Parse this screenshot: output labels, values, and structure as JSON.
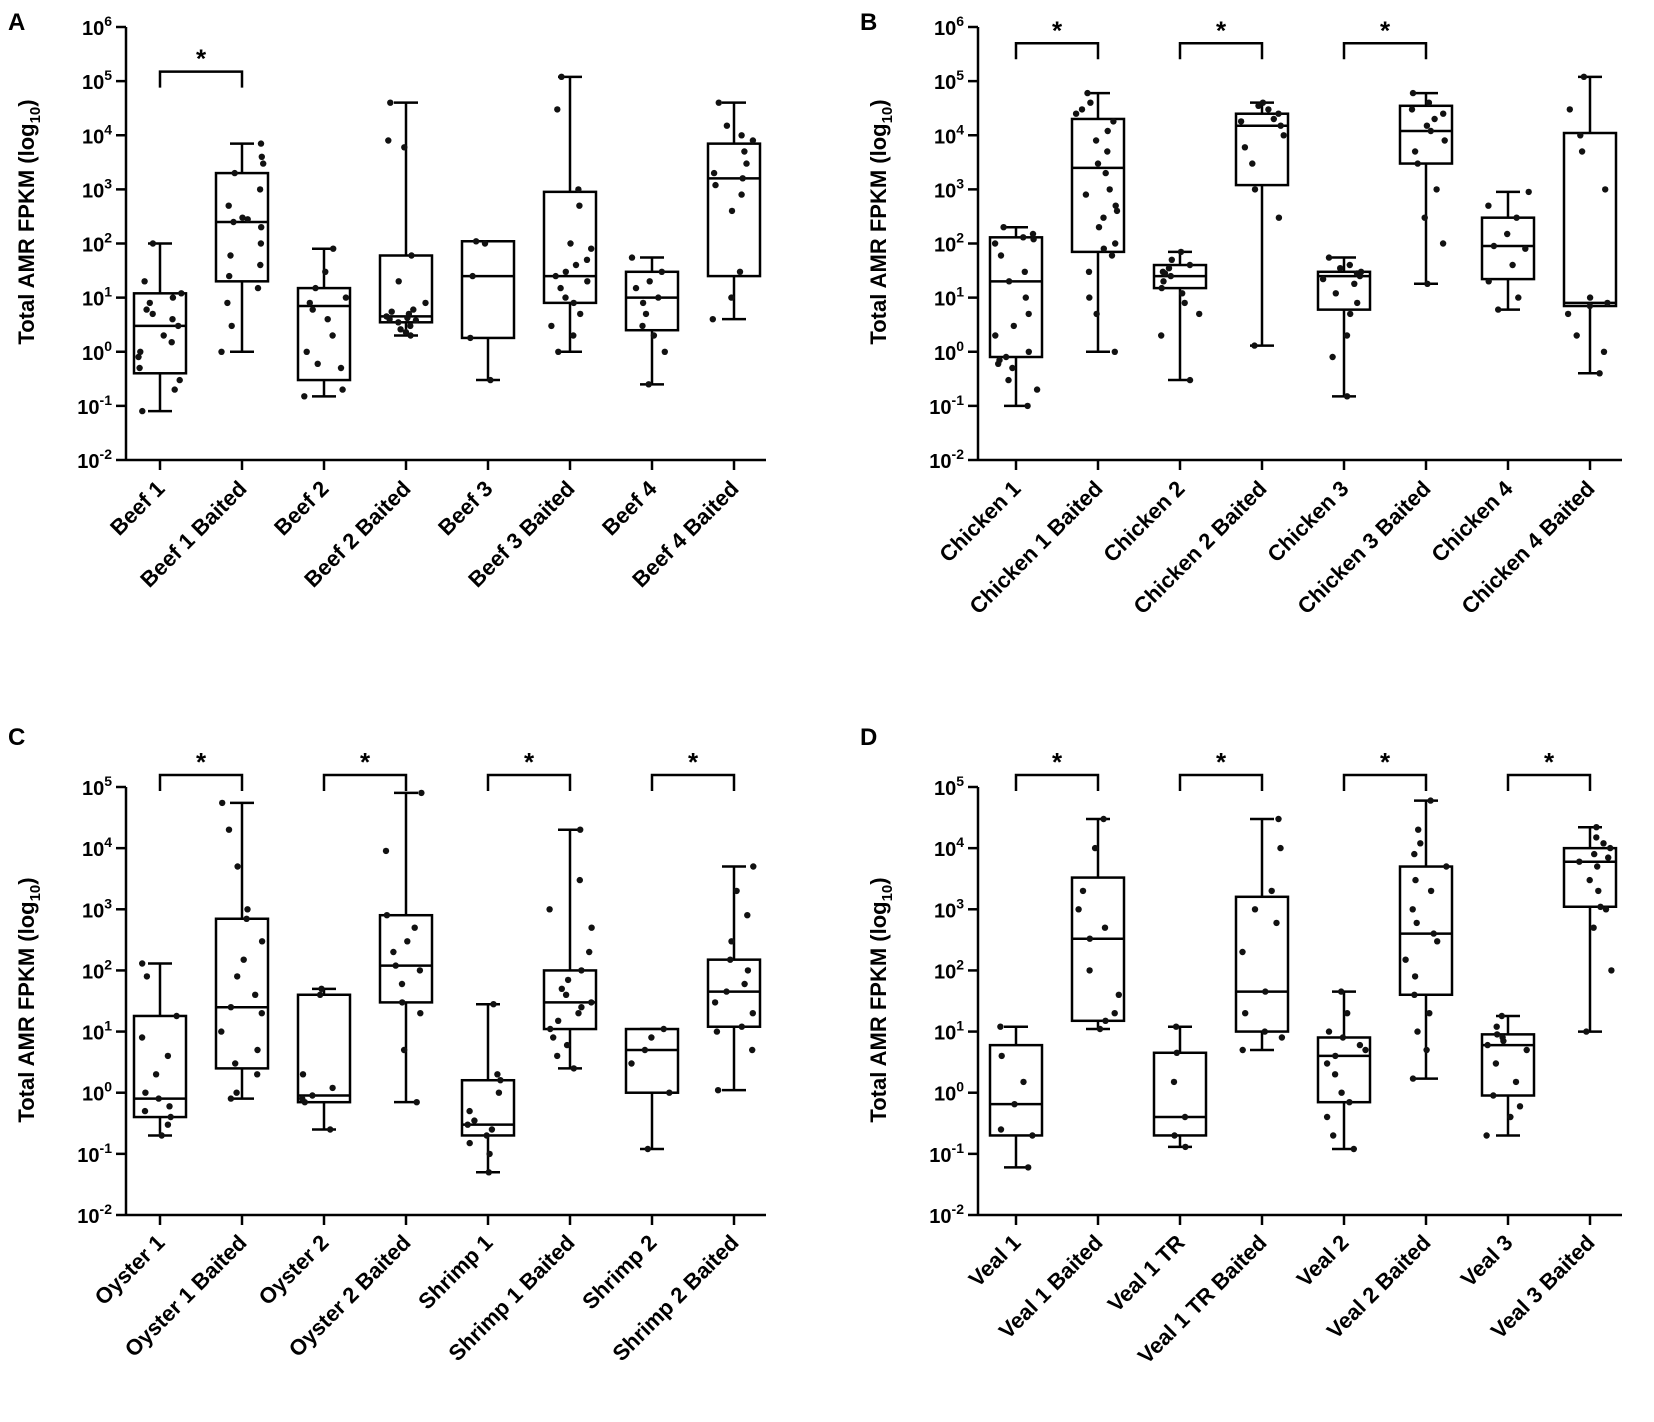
{
  "chart_data": [
    {
      "panel": "A",
      "type": "box",
      "ylabel": "Total AMR FPKM (log10)",
      "yscale": "log",
      "ylim": [
        0.01,
        1000000
      ],
      "yticks": [
        {
          "value": 0.01,
          "base": "10",
          "exp": "-2"
        },
        {
          "value": 0.1,
          "base": "10",
          "exp": "-1"
        },
        {
          "value": 1,
          "base": "10",
          "exp": "0"
        },
        {
          "value": 10,
          "base": "10",
          "exp": "1"
        },
        {
          "value": 100,
          "base": "10",
          "exp": "2"
        },
        {
          "value": 1000,
          "base": "10",
          "exp": "3"
        },
        {
          "value": 10000,
          "base": "10",
          "exp": "4"
        },
        {
          "value": 100000,
          "base": "10",
          "exp": "5"
        },
        {
          "value": 1000000,
          "base": "10",
          "exp": "6"
        }
      ],
      "groups": [
        {
          "label": "Beef 1",
          "min": 0.08,
          "q1": 0.4,
          "median": 3,
          "q3": 12,
          "max": 100,
          "points": [
            0.08,
            0.2,
            0.3,
            0.5,
            0.8,
            1,
            1.5,
            2,
            3,
            4,
            5,
            6,
            8,
            10,
            12,
            20,
            100
          ]
        },
        {
          "label": "Beef 1 Baited",
          "min": 1,
          "q1": 20,
          "median": 250,
          "q3": 2000,
          "max": 7000,
          "points": [
            1,
            3,
            8,
            15,
            25,
            40,
            60,
            100,
            200,
            250,
            280,
            300,
            500,
            1000,
            2000,
            3000,
            4000,
            7000
          ]
        },
        {
          "label": "Beef 2",
          "min": 0.15,
          "q1": 0.3,
          "median": 7,
          "q3": 15,
          "max": 80,
          "points": [
            0.15,
            0.2,
            0.5,
            0.6,
            1,
            2,
            4,
            6,
            8,
            10,
            15,
            30,
            80
          ]
        },
        {
          "label": "Beef 2 Baited",
          "min": 2,
          "q1": 3.5,
          "median": 4.5,
          "q3": 60,
          "max": 40000,
          "points": [
            2,
            2.3,
            2.6,
            3,
            3.5,
            3.8,
            4,
            4.2,
            4.5,
            5,
            5.5,
            6,
            8,
            20,
            60,
            6000,
            8000,
            40000
          ]
        },
        {
          "label": "Beef 3",
          "min": 0.3,
          "q1": 1.8,
          "median": 25,
          "q3": 110,
          "max": 110,
          "points": [
            0.3,
            1.8,
            25,
            100,
            110
          ]
        },
        {
          "label": "Beef 3 Baited",
          "min": 1,
          "q1": 8,
          "median": 25,
          "q3": 900,
          "max": 120000,
          "points": [
            1,
            2,
            3,
            5,
            8,
            10,
            15,
            20,
            25,
            30,
            40,
            50,
            80,
            100,
            500,
            1000,
            30000,
            120000
          ]
        },
        {
          "label": "Beef 4",
          "min": 0.25,
          "q1": 2.5,
          "median": 10,
          "q3": 30,
          "max": 55,
          "points": [
            0.25,
            1,
            2,
            3,
            5,
            8,
            10,
            15,
            20,
            30,
            55
          ]
        },
        {
          "label": "Beef 4 Baited",
          "min": 4,
          "q1": 25,
          "median": 1600,
          "q3": 7000,
          "max": 40000,
          "points": [
            4,
            10,
            30,
            400,
            800,
            1200,
            1600,
            2000,
            3000,
            5000,
            8000,
            10000,
            15000,
            40000
          ]
        }
      ],
      "significance": [
        {
          "pair": [
            0,
            1
          ],
          "y": 150000,
          "label": "*"
        }
      ]
    },
    {
      "panel": "B",
      "type": "box",
      "ylabel": "Total AMR FPKM (log10)",
      "yscale": "log",
      "ylim": [
        0.01,
        1000000
      ],
      "yticks": [
        {
          "value": 0.01,
          "base": "10",
          "exp": "-2"
        },
        {
          "value": 0.1,
          "base": "10",
          "exp": "-1"
        },
        {
          "value": 1,
          "base": "10",
          "exp": "0"
        },
        {
          "value": 10,
          "base": "10",
          "exp": "1"
        },
        {
          "value": 100,
          "base": "10",
          "exp": "2"
        },
        {
          "value": 1000,
          "base": "10",
          "exp": "3"
        },
        {
          "value": 10000,
          "base": "10",
          "exp": "4"
        },
        {
          "value": 100000,
          "base": "10",
          "exp": "5"
        },
        {
          "value": 1000000,
          "base": "10",
          "exp": "6"
        }
      ],
      "groups": [
        {
          "label": "Chicken 1",
          "min": 0.1,
          "q1": 0.8,
          "median": 20,
          "q3": 130,
          "max": 200,
          "points": [
            0.1,
            0.2,
            0.3,
            0.5,
            0.6,
            0.7,
            0.8,
            1,
            2,
            3,
            5,
            10,
            20,
            30,
            60,
            100,
            120,
            130,
            150,
            200
          ]
        },
        {
          "label": "Chicken 1 Baited",
          "min": 1,
          "q1": 70,
          "median": 2500,
          "q3": 20000,
          "max": 60000,
          "points": [
            1,
            5,
            10,
            30,
            60,
            80,
            100,
            200,
            300,
            400,
            500,
            800,
            1000,
            2000,
            3000,
            5000,
            8000,
            12000,
            18000,
            25000,
            30000,
            40000,
            60000
          ]
        },
        {
          "label": "Chicken 2",
          "min": 0.3,
          "q1": 15,
          "median": 25,
          "q3": 40,
          "max": 70,
          "points": [
            0.3,
            2,
            5,
            8,
            12,
            15,
            20,
            25,
            28,
            30,
            35,
            40,
            50,
            70
          ]
        },
        {
          "label": "Chicken 2 Baited",
          "min": 1.3,
          "q1": 1200,
          "median": 15000,
          "q3": 25000,
          "max": 40000,
          "points": [
            1.3,
            300,
            1000,
            3000,
            6000,
            10000,
            15000,
            18000,
            20000,
            25000,
            30000,
            35000,
            40000
          ]
        },
        {
          "label": "Chicken 3",
          "min": 0.15,
          "q1": 6,
          "median": 25,
          "q3": 30,
          "max": 55,
          "points": [
            0.15,
            0.8,
            2,
            5,
            8,
            12,
            18,
            22,
            25,
            28,
            30,
            35,
            40,
            55
          ]
        },
        {
          "label": "Chicken 3 Baited",
          "min": 18,
          "q1": 3000,
          "median": 12000,
          "q3": 35000,
          "max": 60000,
          "points": [
            18,
            100,
            300,
            1000,
            3000,
            5000,
            8000,
            12000,
            15000,
            20000,
            25000,
            30000,
            40000,
            60000
          ]
        },
        {
          "label": "Chicken 4",
          "min": 6,
          "q1": 22,
          "median": 90,
          "q3": 300,
          "max": 900,
          "points": [
            6,
            10,
            20,
            40,
            80,
            90,
            150,
            300,
            500,
            900
          ]
        },
        {
          "label": "Chicken 4 Baited",
          "min": 0.4,
          "q1": 7,
          "median": 8,
          "q3": 11000,
          "max": 120000,
          "points": [
            0.4,
            1,
            2,
            5,
            7,
            8,
            10,
            1000,
            5000,
            10000,
            30000,
            120000
          ]
        }
      ],
      "significance": [
        {
          "pair": [
            0,
            1
          ],
          "y": 500000,
          "label": "*"
        },
        {
          "pair": [
            2,
            3
          ],
          "y": 500000,
          "label": "*"
        },
        {
          "pair": [
            4,
            5
          ],
          "y": 500000,
          "label": "*"
        }
      ]
    },
    {
      "panel": "C",
      "type": "box",
      "ylabel": "Total AMR FPKM (log10)",
      "yscale": "log",
      "ylim": [
        0.01,
        100000
      ],
      "yticks": [
        {
          "value": 0.01,
          "base": "10",
          "exp": "-2"
        },
        {
          "value": 0.1,
          "base": "10",
          "exp": "-1"
        },
        {
          "value": 1,
          "base": "10",
          "exp": "0"
        },
        {
          "value": 10,
          "base": "10",
          "exp": "1"
        },
        {
          "value": 100,
          "base": "10",
          "exp": "2"
        },
        {
          "value": 1000,
          "base": "10",
          "exp": "3"
        },
        {
          "value": 10000,
          "base": "10",
          "exp": "4"
        },
        {
          "value": 100000,
          "base": "10",
          "exp": "5"
        }
      ],
      "groups": [
        {
          "label": "Oyster 1",
          "min": 0.2,
          "q1": 0.4,
          "median": 0.8,
          "q3": 18,
          "max": 130,
          "points": [
            0.2,
            0.3,
            0.4,
            0.5,
            0.6,
            0.8,
            1,
            2,
            4,
            8,
            18,
            80,
            130
          ]
        },
        {
          "label": "Oyster 1 Baited",
          "min": 0.8,
          "q1": 2.5,
          "median": 25,
          "q3": 700,
          "max": 55000,
          "points": [
            0.8,
            1,
            2,
            3,
            5,
            10,
            20,
            25,
            40,
            80,
            150,
            300,
            700,
            1000,
            5000,
            20000,
            55000
          ]
        },
        {
          "label": "Oyster 2",
          "min": 0.25,
          "q1": 0.7,
          "median": 0.9,
          "q3": 40,
          "max": 50,
          "points": [
            0.25,
            0.7,
            0.8,
            0.9,
            1.2,
            2,
            40,
            50
          ]
        },
        {
          "label": "Oyster 2 Baited",
          "min": 0.7,
          "q1": 30,
          "median": 120,
          "q3": 800,
          "max": 80000,
          "points": [
            0.7,
            5,
            20,
            30,
            60,
            100,
            120,
            200,
            300,
            500,
            800,
            9000,
            80000
          ]
        },
        {
          "label": "Shrimp 1",
          "min": 0.05,
          "q1": 0.2,
          "median": 0.3,
          "q3": 1.6,
          "max": 28,
          "points": [
            0.05,
            0.1,
            0.15,
            0.2,
            0.25,
            0.3,
            0.35,
            0.5,
            1,
            1.6,
            2,
            28
          ]
        },
        {
          "label": "Shrimp 1 Baited",
          "min": 2.5,
          "q1": 11,
          "median": 30,
          "q3": 100,
          "max": 20000,
          "points": [
            2.5,
            4,
            6,
            8,
            11,
            15,
            20,
            25,
            30,
            40,
            50,
            70,
            100,
            200,
            500,
            1000,
            3000,
            20000
          ]
        },
        {
          "label": "Shrimp 2",
          "min": 0.12,
          "q1": 1,
          "median": 5,
          "q3": 11,
          "max": 11,
          "points": [
            0.12,
            1,
            3,
            5,
            8,
            11
          ]
        },
        {
          "label": "Shrimp 2 Baited",
          "min": 1.1,
          "q1": 12,
          "median": 45,
          "q3": 150,
          "max": 5000,
          "points": [
            1.1,
            5,
            10,
            12,
            20,
            30,
            45,
            60,
            100,
            150,
            300,
            800,
            2000,
            5000
          ]
        }
      ],
      "significance": [
        {
          "pair": [
            0,
            1
          ],
          "y": 300000,
          "label": "*"
        },
        {
          "pair": [
            2,
            3
          ],
          "y": 300000,
          "label": "*"
        },
        {
          "pair": [
            4,
            5
          ],
          "y": 300000,
          "label": "*"
        },
        {
          "pair": [
            6,
            7
          ],
          "y": 300000,
          "label": "*"
        }
      ]
    },
    {
      "panel": "D",
      "type": "box",
      "ylabel": "Total AMR FPKM (log10)",
      "yscale": "log",
      "ylim": [
        0.01,
        100000
      ],
      "yticks": [
        {
          "value": 0.01,
          "base": "10",
          "exp": "-2"
        },
        {
          "value": 0.1,
          "base": "10",
          "exp": "-1"
        },
        {
          "value": 1,
          "base": "10",
          "exp": "0"
        },
        {
          "value": 10,
          "base": "10",
          "exp": "1"
        },
        {
          "value": 100,
          "base": "10",
          "exp": "2"
        },
        {
          "value": 1000,
          "base": "10",
          "exp": "3"
        },
        {
          "value": 10000,
          "base": "10",
          "exp": "4"
        },
        {
          "value": 100000,
          "base": "10",
          "exp": "5"
        }
      ],
      "groups": [
        {
          "label": "Veal 1",
          "min": 0.06,
          "q1": 0.2,
          "median": 0.65,
          "q3": 6,
          "max": 12,
          "points": [
            0.06,
            0.2,
            0.25,
            0.65,
            1.5,
            4,
            12
          ]
        },
        {
          "label": "Veal 1 Baited",
          "min": 11,
          "q1": 15,
          "median": 330,
          "q3": 3300,
          "max": 30000,
          "points": [
            11,
            15,
            20,
            40,
            100,
            330,
            500,
            1000,
            2000,
            10000,
            30000
          ]
        },
        {
          "label": "Veal 1 TR",
          "min": 0.13,
          "q1": 0.2,
          "median": 0.4,
          "q3": 4.5,
          "max": 12,
          "points": [
            0.13,
            0.2,
            0.4,
            1.5,
            4.5,
            12
          ]
        },
        {
          "label": "Veal 1 TR Baited",
          "min": 5,
          "q1": 10,
          "median": 45,
          "q3": 1600,
          "max": 30000,
          "points": [
            5,
            8,
            10,
            20,
            45,
            200,
            600,
            1000,
            2000,
            10000,
            30000
          ]
        },
        {
          "label": "Veal 2",
          "min": 0.12,
          "q1": 0.7,
          "median": 4,
          "q3": 8,
          "max": 45,
          "points": [
            0.12,
            0.2,
            0.4,
            0.7,
            1,
            2,
            3,
            4,
            5,
            6,
            8,
            10,
            20,
            45
          ]
        },
        {
          "label": "Veal 2 Baited",
          "min": 1.7,
          "q1": 40,
          "median": 400,
          "q3": 5000,
          "max": 60000,
          "points": [
            1.7,
            5,
            10,
            20,
            40,
            80,
            150,
            300,
            400,
            600,
            1000,
            2000,
            3000,
            5000,
            8000,
            12000,
            20000,
            60000
          ]
        },
        {
          "label": "Veal 3",
          "min": 0.2,
          "q1": 0.9,
          "median": 6,
          "q3": 9,
          "max": 18,
          "points": [
            0.2,
            0.4,
            0.6,
            0.9,
            1.5,
            3,
            5,
            6,
            7,
            8,
            9,
            12,
            18
          ]
        },
        {
          "label": "Veal 3 Baited",
          "min": 10,
          "q1": 1100,
          "median": 6000,
          "q3": 10000,
          "max": 22000,
          "points": [
            10,
            100,
            500,
            1000,
            1100,
            2000,
            3000,
            5000,
            6000,
            7000,
            8000,
            10000,
            12000,
            15000,
            22000
          ]
        }
      ],
      "significance": [
        {
          "pair": [
            0,
            1
          ],
          "y": 300000,
          "label": "*"
        },
        {
          "pair": [
            2,
            3
          ],
          "y": 300000,
          "label": "*"
        },
        {
          "pair": [
            4,
            5
          ],
          "y": 300000,
          "label": "*"
        },
        {
          "pair": [
            6,
            7
          ],
          "y": 300000,
          "label": "*"
        }
      ]
    }
  ]
}
